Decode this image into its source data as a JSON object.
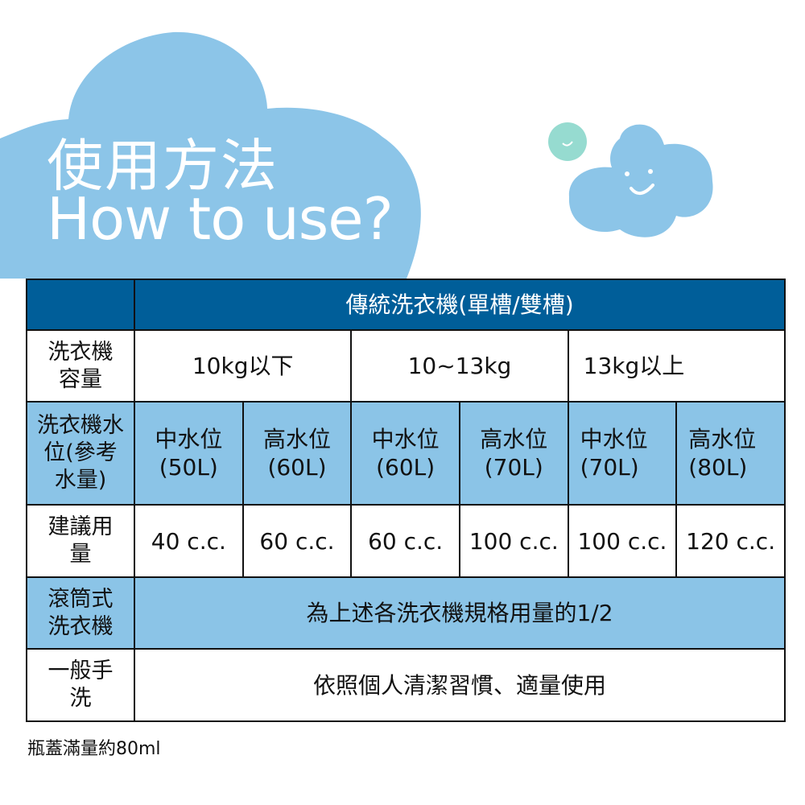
{
  "colors": {
    "header": "#005e99",
    "light_row": "#8bc4e7",
    "cloud": "#8cc5e8",
    "small_cloud": "#96dbd0"
  },
  "title": {
    "zh": "使用方法",
    "en": "How to use?"
  },
  "table": {
    "header": "傳統洗衣機(單槽/雙槽)",
    "capacity_label": "洗衣機容量",
    "capacities": [
      "10kg以下",
      "10~13kg",
      "13kg以上"
    ],
    "level_label": "洗衣機水位(參考水量)",
    "levels": [
      {
        "name": "中水位",
        "volume": "(50L)"
      },
      {
        "name": "高水位",
        "volume": "(60L)"
      },
      {
        "name": "中水位",
        "volume": "(60L)"
      },
      {
        "name": "高水位",
        "volume": "(70L)"
      },
      {
        "name": "中水位",
        "volume": "(70L)"
      },
      {
        "name": "高水位",
        "volume": "(80L)"
      }
    ],
    "dose_label": "建議用量",
    "doses": [
      "40 c.c.",
      "60 c.c.",
      "60 c.c.",
      "100 c.c.",
      "100 c.c.",
      "120 c.c."
    ],
    "drum_label": "滾筒式洗衣機",
    "drum_value": "為上述各洗衣機規格用量的1/2",
    "hand_label": "一般手洗",
    "hand_value": "依照個人清潔習慣、適量使用"
  },
  "note": "瓶蓋滿量約80ml"
}
